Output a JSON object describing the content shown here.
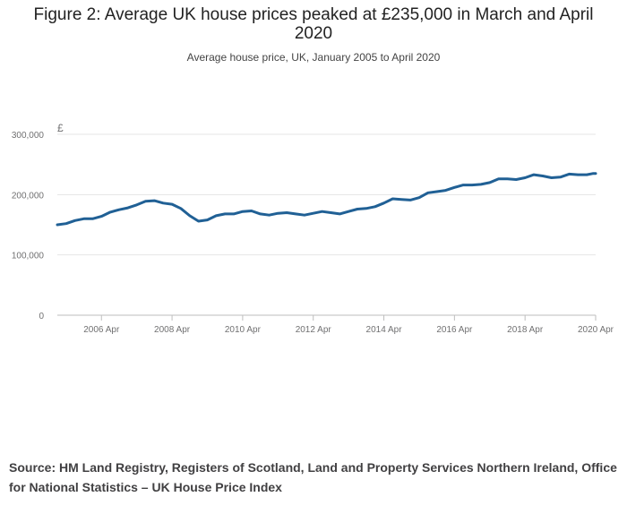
{
  "chart_data": {
    "type": "line",
    "title": "Figure 2: Average UK house prices peaked at £235,000 in March and April 2020",
    "subtitle": "Average house price, UK, January 2005 to April 2020",
    "ylabel": "£",
    "xlabel": "",
    "ylim": [
      0,
      300000
    ],
    "yticks": [
      0,
      100000,
      200000,
      300000
    ],
    "ytick_labels": [
      "0",
      "100,000",
      "200,000",
      "300,000"
    ],
    "xlim": [
      2005.0,
      2020.25
    ],
    "xticks": [
      2006.25,
      2008.25,
      2010.25,
      2012.25,
      2014.25,
      2016.25,
      2018.25,
      2020.25
    ],
    "xtick_labels": [
      "2006 Apr",
      "2008 Apr",
      "2010 Apr",
      "2012 Apr",
      "2014 Apr",
      "2016 Apr",
      "2018 Apr",
      "2020 Apr"
    ],
    "grid": true,
    "line_color": "#206095",
    "series": [
      {
        "name": "Average house price",
        "x": [
          2005.0,
          2005.25,
          2005.5,
          2005.75,
          2006.0,
          2006.25,
          2006.5,
          2006.75,
          2007.0,
          2007.25,
          2007.5,
          2007.75,
          2008.0,
          2008.25,
          2008.5,
          2008.75,
          2009.0,
          2009.25,
          2009.5,
          2009.75,
          2010.0,
          2010.25,
          2010.5,
          2010.75,
          2011.0,
          2011.25,
          2011.5,
          2011.75,
          2012.0,
          2012.25,
          2012.5,
          2012.75,
          2013.0,
          2013.25,
          2013.5,
          2013.75,
          2014.0,
          2014.25,
          2014.5,
          2014.75,
          2015.0,
          2015.25,
          2015.5,
          2015.75,
          2016.0,
          2016.25,
          2016.5,
          2016.75,
          2017.0,
          2017.25,
          2017.5,
          2017.75,
          2018.0,
          2018.25,
          2018.5,
          2018.75,
          2019.0,
          2019.25,
          2019.5,
          2019.75,
          2020.0,
          2020.17,
          2020.25
        ],
        "values": [
          150000,
          152000,
          157000,
          160000,
          160000,
          164000,
          171000,
          175000,
          178000,
          183000,
          189000,
          190000,
          186000,
          184000,
          177000,
          165000,
          156000,
          158000,
          165000,
          168000,
          168000,
          172000,
          173000,
          168000,
          166000,
          169000,
          170000,
          168000,
          166000,
          169000,
          172000,
          170000,
          168000,
          172000,
          176000,
          177000,
          180000,
          186000,
          193000,
          192000,
          191000,
          195000,
          203000,
          205000,
          207000,
          212000,
          216000,
          216000,
          217000,
          220000,
          226000,
          226000,
          225000,
          228000,
          233000,
          231000,
          228000,
          229000,
          234000,
          233000,
          233000,
          235000,
          235000
        ]
      }
    ]
  },
  "source": {
    "text": "Source: HM Land Registry, Registers of Scotland, Land and Property Services Northern Ireland, Office for National Statistics – UK House Price Index"
  }
}
